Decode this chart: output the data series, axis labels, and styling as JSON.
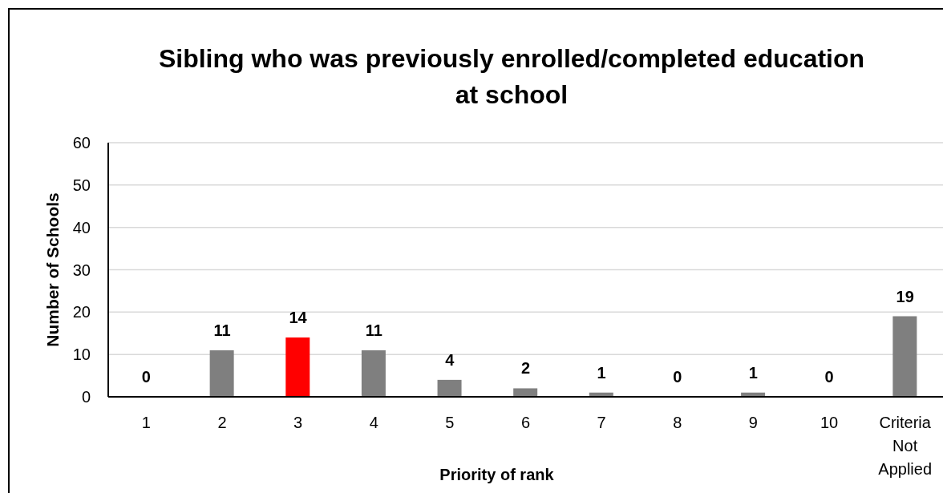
{
  "chart_data": {
    "type": "bar",
    "title": "Sibling who was previously enrolled/completed education at school",
    "xlabel": "Priority of rank",
    "ylabel": "Number of Schools",
    "categories": [
      "1",
      "2",
      "3",
      "4",
      "5",
      "6",
      "7",
      "8",
      "9",
      "10",
      "Criteria Not Applied"
    ],
    "values": [
      0,
      11,
      14,
      11,
      4,
      2,
      1,
      0,
      1,
      0,
      19
    ],
    "colors": [
      "#7f7f7f",
      "#7f7f7f",
      "#ff0000",
      "#7f7f7f",
      "#7f7f7f",
      "#7f7f7f",
      "#7f7f7f",
      "#7f7f7f",
      "#7f7f7f",
      "#7f7f7f",
      "#7f7f7f"
    ],
    "ylim": [
      0,
      60
    ],
    "yticks": [
      0,
      10,
      20,
      30,
      40,
      50,
      60
    ],
    "grid": "y",
    "data_labels": true
  }
}
